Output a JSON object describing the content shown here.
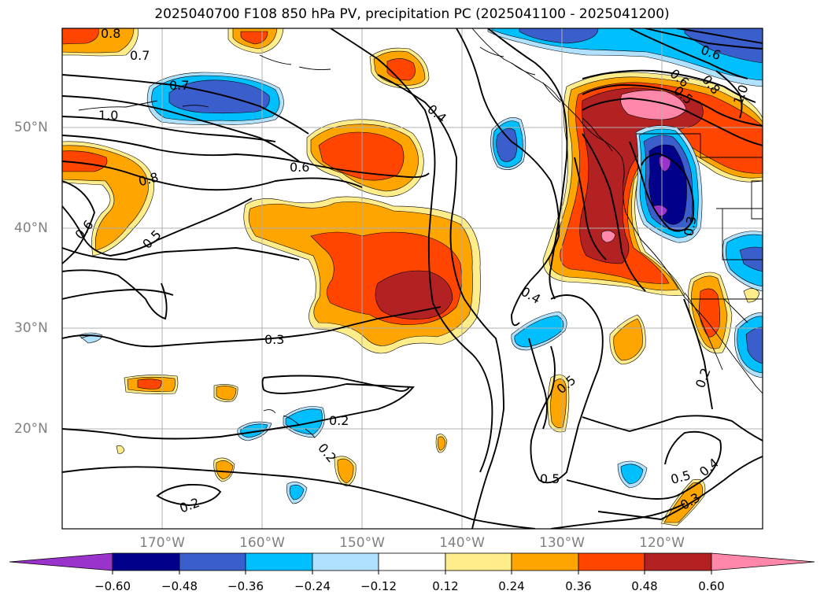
{
  "title": "2025040700 F108 850 hPa PV, precipitation PC (2025041100 - 2025041200)",
  "lat_labels": [
    "50°N",
    "40°N",
    "30°N",
    "20°N"
  ],
  "lon_labels": [
    "170°W",
    "160°W",
    "150°W",
    "140°W",
    "130°W",
    "120°W"
  ],
  "colorbar": {
    "ticks": [
      "−0.60",
      "−0.48",
      "−0.36",
      "−0.24",
      "−0.12",
      "0.12",
      "0.24",
      "0.36",
      "0.48",
      "0.60"
    ],
    "colors": [
      "#9933cc",
      "#00008b",
      "#3a5fcd",
      "#00bfff",
      "#b0e2ff",
      "#ffffff",
      "#ffec8b",
      "#ffa500",
      "#ff4500",
      "#b22222",
      "#ff88aa"
    ]
  },
  "contour_labels": [
    "0.8",
    "0.7",
    "0.7",
    "1.0",
    "0.4",
    "0.6",
    "0.8",
    "0.6",
    "0.5",
    "0.3",
    "0.4",
    "0.5",
    "0.2",
    "0.2",
    "0.2",
    "0.5",
    "0.5",
    "0.4",
    "0.3",
    "0.2",
    "0.3",
    "0.6",
    "0.5",
    "0.6",
    "0.8",
    "1.0"
  ]
}
